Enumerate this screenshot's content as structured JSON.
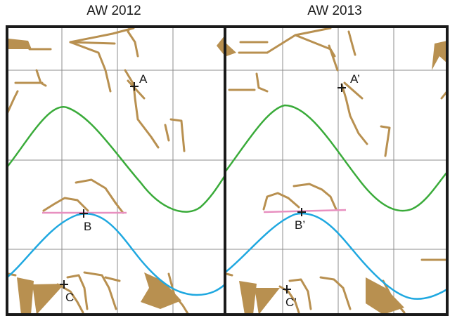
{
  "panels": [
    {
      "id": "left",
      "title": "AW 2012",
      "points": {
        "a": "A",
        "b": "B",
        "c": "C"
      }
    },
    {
      "id": "right",
      "title": "AW 2013",
      "points": {
        "a": "A’",
        "b": "B’",
        "c": "C’"
      }
    }
  ],
  "colors": {
    "frame": "#1a1a1a",
    "grid": "#8c8c8c",
    "green_curve": "#3aab3a",
    "blue_curve": "#1fa8e0",
    "pink_line": "#e890c0",
    "features": "#b89050"
  }
}
